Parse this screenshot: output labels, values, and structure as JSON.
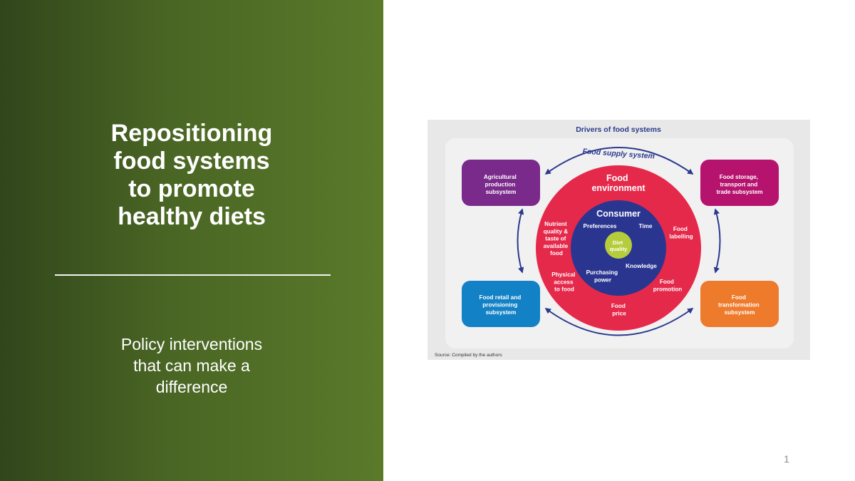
{
  "slide": {
    "title": "Repositioning\nfood systems\nto promote\nhealthy diets",
    "subtitle": "Policy interventions\nthat can make a\ndifference",
    "slide_number": "1"
  },
  "figure": {
    "header": "Drivers of food systems",
    "source": "Source: Compiled by the authors",
    "supply_label": "Food supply system",
    "subsystems": {
      "agri": [
        "Agricultural",
        "production",
        "subsystem"
      ],
      "storage": [
        "Food storage,",
        "transport and",
        "trade subsystem"
      ],
      "retail": [
        "Food retail and",
        "provisioning",
        "subsystem"
      ],
      "transformation": [
        "Food",
        "transformation",
        "subsystem"
      ]
    },
    "environment": {
      "title": [
        "Food",
        "environment"
      ],
      "nutrient": [
        "Nutrient",
        "quality &",
        "taste of",
        "available",
        "food"
      ],
      "labelling": [
        "Food",
        "labelling"
      ],
      "physical": [
        "Physical",
        "access",
        "to food"
      ],
      "promotion": [
        "Food",
        "promotion"
      ],
      "price": [
        "Food",
        "price"
      ]
    },
    "consumer": {
      "title": "Consumer",
      "preferences": "Preferences",
      "time": "Time",
      "knowledge": "Knowledge",
      "purchasing": [
        "Purchasing",
        "power"
      ]
    },
    "diet": [
      "Diet",
      "quality"
    ],
    "colors": {
      "figure_bg": "#e8e8e8",
      "panel_bg": "#f2f1f2",
      "navy": "#2a3a8c",
      "environment_red": "#e5294b",
      "consumer_blue": "#2a3590",
      "diet_green": "#b5cd3c",
      "agri_purple": "#7a2a8a",
      "storage_magenta": "#b5136e",
      "retail_blue": "#1281c5",
      "transformation_orange": "#ee7a2b"
    }
  }
}
